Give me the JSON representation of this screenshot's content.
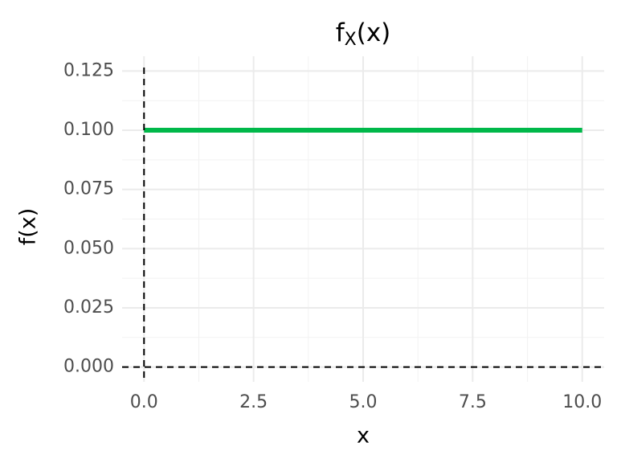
{
  "chart_data": {
    "type": "line",
    "title": {
      "base": "f",
      "subscript": "X",
      "rest": "(x)"
    },
    "xlabel": "x",
    "ylabel": "f(x)",
    "x": [
      0,
      10
    ],
    "series": [
      {
        "name": "f(x)",
        "color": "#00b84a",
        "values": [
          0.1,
          0.1
        ]
      }
    ],
    "xlim": [
      -0.5,
      10.5
    ],
    "xticks": [
      {
        "value": 0,
        "label": "0.0"
      },
      2.5,
      {
        "value": 5,
        "label": "5.0"
      },
      7.5,
      {
        "value": 10,
        "label": "10.0"
      }
    ],
    "ylim": [
      -0.00625,
      0.13125
    ],
    "yticks": [
      {
        "value": 0,
        "label": "0.000"
      },
      {
        "value": 0.025,
        "label": "0.025"
      },
      {
        "value": 0.05,
        "label": "0.050"
      },
      {
        "value": 0.075,
        "label": "0.075"
      },
      {
        "value": 0.1,
        "label": "0.100"
      },
      {
        "value": 0.125,
        "label": "0.125"
      }
    ],
    "hlines": [
      0
    ],
    "vlines": [
      0
    ],
    "grid": true
  }
}
